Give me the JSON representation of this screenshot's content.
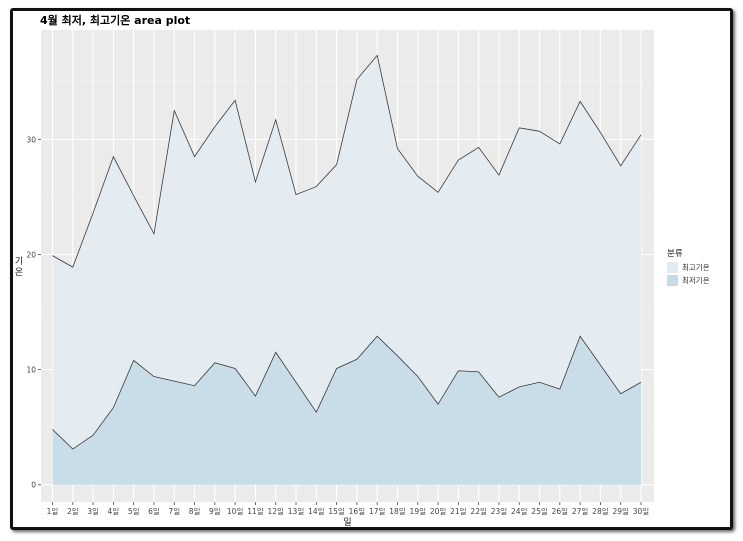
{
  "chart_data": {
    "type": "area",
    "title": "4월 최저, 최고기온 area plot",
    "xlabel": "일",
    "ylabel": "기온",
    "ylabel_chars": [
      "기",
      "온"
    ],
    "categories": [
      "1일",
      "2일",
      "3일",
      "4일",
      "5일",
      "6일",
      "7일",
      "8일",
      "9일",
      "10일",
      "11일",
      "12일",
      "13일",
      "14일",
      "15일",
      "16일",
      "17일",
      "18일",
      "19일",
      "20일",
      "21일",
      "22일",
      "23일",
      "24일",
      "25일",
      "26일",
      "27일",
      "28일",
      "29일",
      "30일"
    ],
    "yticks": [
      0,
      10,
      20,
      30
    ],
    "ylim": [
      -1.5,
      39.5
    ],
    "grid": true,
    "legend_position": "right",
    "legend_title": "분류",
    "series": [
      {
        "name": "최고기온",
        "color": "#e3ebf2",
        "values": [
          19.9,
          18.9,
          23.6,
          28.5,
          25.1,
          21.8,
          32.5,
          28.5,
          31.1,
          33.4,
          26.3,
          31.7,
          25.2,
          25.9,
          27.8,
          35.2,
          37.3,
          29.2,
          26.8,
          25.4,
          28.2,
          29.3,
          26.9,
          31.0,
          30.7,
          29.6,
          33.3,
          30.6,
          27.7,
          30.4
        ]
      },
      {
        "name": "최저기온",
        "color": "#c6dbe7",
        "values": [
          4.8,
          3.1,
          4.3,
          6.7,
          10.8,
          9.4,
          9.0,
          8.6,
          10.6,
          10.1,
          7.7,
          11.5,
          8.9,
          6.3,
          10.1,
          10.9,
          12.9,
          11.2,
          9.4,
          7.0,
          9.9,
          9.8,
          7.6,
          8.5,
          8.9,
          8.3,
          12.9,
          10.4,
          7.9,
          8.9
        ]
      }
    ]
  }
}
